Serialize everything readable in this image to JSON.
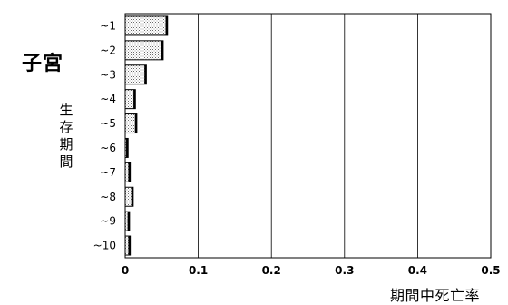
{
  "organ_label": "子宮",
  "y_axis_label_chars": [
    "生",
    "存",
    "期",
    "間"
  ],
  "x_axis_label": "期間中死亡率",
  "chart_data": {
    "type": "bar",
    "orientation": "horizontal",
    "categories": [
      "~1",
      "~2",
      "~3",
      "~4",
      "~5",
      "~6",
      "~7",
      "~8",
      "~9",
      "~10"
    ],
    "values": [
      0.058,
      0.052,
      0.029,
      0.014,
      0.016,
      0.004,
      0.007,
      0.011,
      0.006,
      0.007
    ],
    "xlim": [
      0,
      0.5
    ],
    "xticks": [
      "0",
      "0.1",
      "0.2",
      "0.3",
      "0.4",
      "0.5"
    ],
    "xlabel": "期間中死亡率",
    "ylabel": "生存期間",
    "grid": "vertical"
  }
}
